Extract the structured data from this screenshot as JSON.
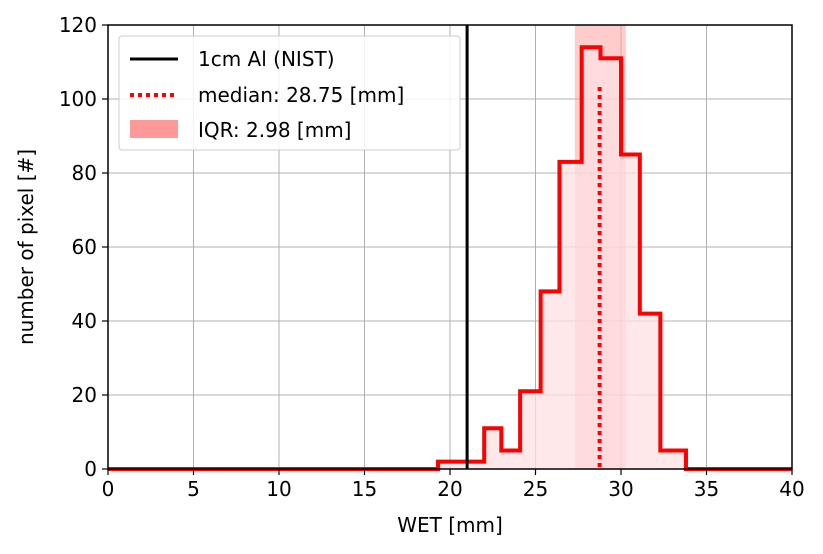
{
  "chart_data": {
    "type": "histogram",
    "xlabel": "WET [mm]",
    "ylabel": "number of pixel [#]",
    "xlim": [
      0,
      40
    ],
    "ylim": [
      0,
      120
    ],
    "x_ticks": [
      "0",
      "5",
      "10",
      "15",
      "20",
      "25",
      "30",
      "35",
      "40"
    ],
    "y_ticks": [
      "0",
      "20",
      "40",
      "60",
      "80",
      "100",
      "120"
    ],
    "grid": true,
    "legend_position": "upper-left",
    "bin_edges": [
      0,
      18.1,
      19.3,
      21.1,
      22.0,
      23.0,
      24.1,
      25.3,
      26.4,
      27.7,
      28.8,
      30.0,
      31.1,
      32.3,
      33.8,
      40
    ],
    "counts": [
      0,
      0,
      2,
      2,
      11,
      5,
      21,
      48,
      83,
      114,
      111,
      85,
      42,
      5,
      0
    ],
    "vertical_line": {
      "x": 21.0,
      "label": "1cm Al (NIST)",
      "color": "#000000"
    },
    "median": {
      "x": 28.75,
      "label": "median: 28.75 [mm]",
      "color": "#ff0000"
    },
    "iqr": {
      "x_start": 27.3,
      "x_end": 30.28,
      "label": "IQR: 2.98 [mm]",
      "color": "#ff9999"
    },
    "histogram_edge_color": "#ff0000",
    "histogram_fill_color": "#ffe0e3"
  }
}
